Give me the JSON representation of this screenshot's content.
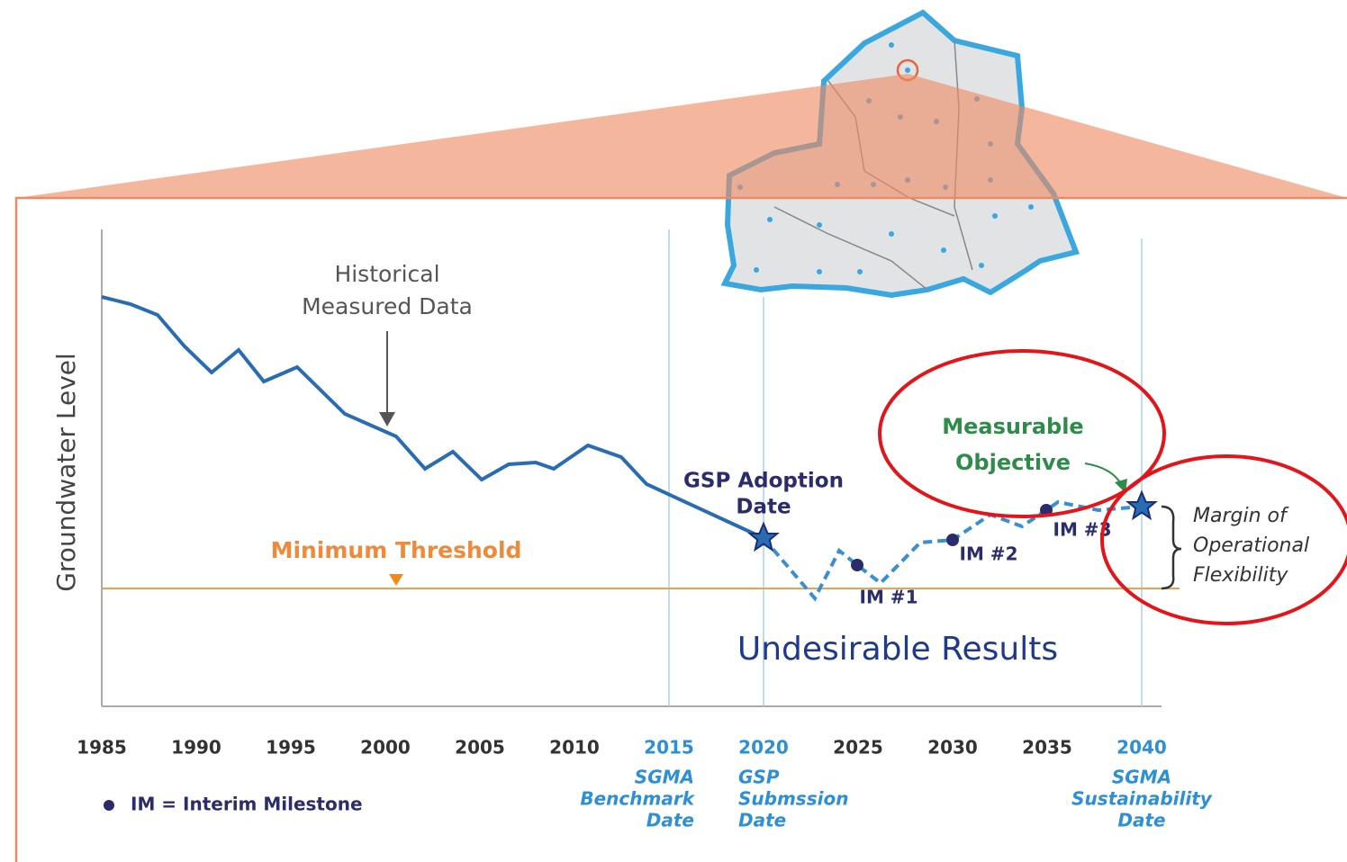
{
  "y_axis_label": "Groundwater Level",
  "x_ticks": [
    "1985",
    "1990",
    "1995",
    "2000",
    "2005",
    "2010",
    "2015",
    "2020",
    "2025",
    "2030",
    "2035",
    "2040"
  ],
  "milestone_dates": [
    {
      "tick": "2015",
      "lines": [
        "SGMA",
        "Benchmark",
        "Date"
      ]
    },
    {
      "tick": "2020",
      "lines": [
        "GSP",
        "Submssion",
        "Date"
      ]
    },
    {
      "tick": "2040",
      "lines": [
        "SGMA",
        "Sustainability",
        "Date"
      ]
    }
  ],
  "annotations": {
    "historical": [
      "Historical",
      "Measured Data"
    ],
    "minimum_threshold": "Minimum Threshold",
    "gsp_adoption": [
      "GSP Adoption",
      "Date"
    ],
    "measurable_objective": [
      "Measurable",
      "Objective"
    ],
    "interim_milestones": [
      "IM #1",
      "IM #2",
      "IM #3"
    ],
    "margin": [
      "Margin of",
      "Operational",
      "Flexibility"
    ],
    "undesirable_results": "Undesirable Results"
  },
  "legend": "IM = Interim Milestone"
}
